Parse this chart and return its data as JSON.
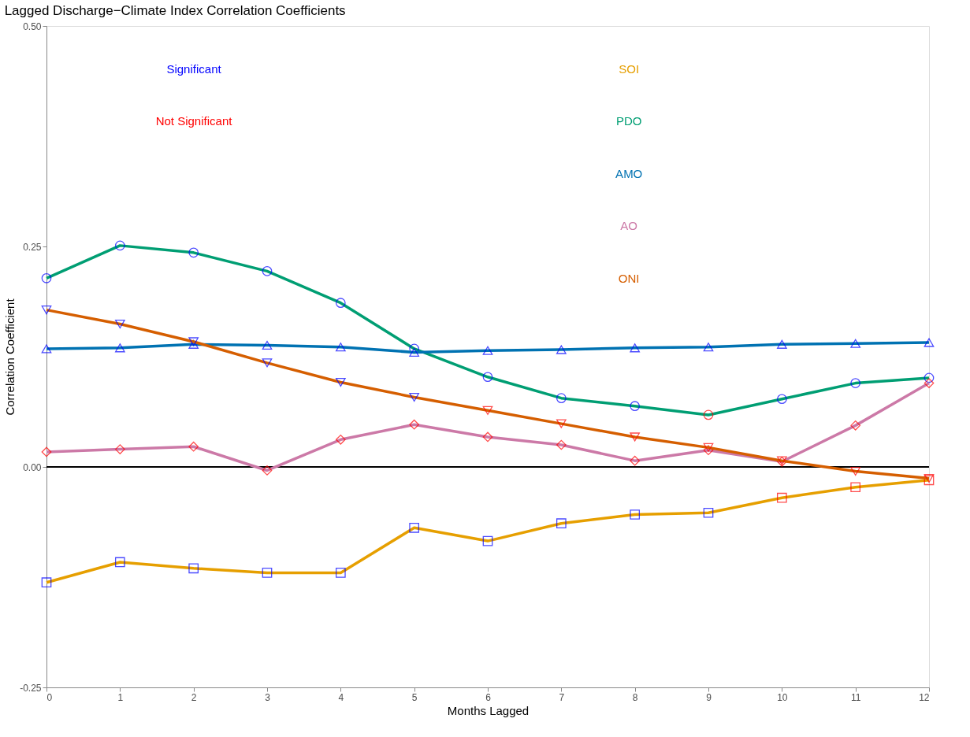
{
  "chart_data": {
    "type": "line",
    "title": "Lagged Discharge−Climate Index Correlation Coefficients",
    "xlabel": "Months Lagged",
    "ylabel": "Correlation Coefficient",
    "x": [
      0,
      1,
      2,
      3,
      4,
      5,
      6,
      7,
      8,
      9,
      10,
      11,
      12
    ],
    "xlim": [
      0,
      12
    ],
    "xticks": [
      0,
      1,
      2,
      3,
      4,
      5,
      6,
      7,
      8,
      9,
      10,
      11,
      12
    ],
    "ylim": [
      -0.25,
      0.5
    ],
    "yticks": [
      {
        "value": -0.25,
        "label": "-0.25"
      },
      {
        "value": 0,
        "label": "0.00"
      },
      {
        "value": 0.25,
        "label": "0.25"
      },
      {
        "value": 0.5,
        "label": "0.50"
      }
    ],
    "grid": false,
    "legend": "top right",
    "ref_lines": [
      {
        "axis": "y",
        "value": 0,
        "color": "#000000"
      }
    ],
    "annotations": [
      "Significant",
      "Not Significant"
    ],
    "series": [
      {
        "name": "SOI",
        "color": "#e69f00",
        "marker": "square",
        "values": [
          -0.131,
          -0.108,
          -0.115,
          -0.12,
          -0.12,
          -0.069,
          -0.084,
          -0.064,
          -0.054,
          -0.052,
          -0.035,
          -0.023,
          -0.015
        ],
        "colors": [
          "#0000ff",
          "#0000ff",
          "#0000ff",
          "#0000ff",
          "#0000ff",
          "#0000ff",
          "#0000ff",
          "#0000ff",
          "#0000ff",
          "#0000ff",
          "#ff0000",
          "#ff0000",
          "#ff0000"
        ]
      },
      {
        "name": "PDO",
        "color": "#009e73",
        "marker": "circle",
        "values": [
          0.214,
          0.251,
          0.243,
          0.222,
          0.186,
          0.134,
          0.102,
          0.078,
          0.069,
          0.059,
          0.077,
          0.095,
          0.101
        ],
        "colors": [
          "#0000ff",
          "#0000ff",
          "#0000ff",
          "#0000ff",
          "#0000ff",
          "#0000ff",
          "#0000ff",
          "#0000ff",
          "#0000ff",
          "#ff0000",
          "#0000ff",
          "#0000ff",
          "#0000ff"
        ]
      },
      {
        "name": "AMO",
        "color": "#0072b2",
        "marker": "triangle",
        "values": [
          0.134,
          0.135,
          0.139,
          0.138,
          0.136,
          0.13,
          0.132,
          0.133,
          0.135,
          0.136,
          0.139,
          0.14,
          0.141
        ],
        "colors": [
          "#0000ff",
          "#0000ff",
          "#0000ff",
          "#0000ff",
          "#0000ff",
          "#0000ff",
          "#0000ff",
          "#0000ff",
          "#0000ff",
          "#0000ff",
          "#0000ff",
          "#0000ff",
          "#0000ff"
        ]
      },
      {
        "name": "AO",
        "color": "#cc79a7",
        "marker": "diamond",
        "values": [
          0.017,
          0.02,
          0.023,
          -0.004,
          0.031,
          0.048,
          0.034,
          0.025,
          0.007,
          0.019,
          0.006,
          0.047,
          0.095
        ],
        "colors": [
          "#ff0000",
          "#ff0000",
          "#ff0000",
          "#ff0000",
          "#ff0000",
          "#ff0000",
          "#ff0000",
          "#ff0000",
          "#ff0000",
          "#ff0000",
          "#ff0000",
          "#ff0000",
          "#ff0000"
        ]
      },
      {
        "name": "ONI",
        "color": "#d55e00",
        "marker": "triangle-down",
        "values": [
          0.178,
          0.162,
          0.142,
          0.118,
          0.096,
          0.079,
          0.064,
          0.049,
          0.034,
          0.022,
          0.007,
          -0.005,
          -0.013
        ],
        "colors": [
          "#0000ff",
          "#0000ff",
          "#0000ff",
          "#0000ff",
          "#0000ff",
          "#0000ff",
          "#ff0000",
          "#ff0000",
          "#ff0000",
          "#ff0000",
          "#ff0000",
          "#ff0000",
          "#ff0000"
        ]
      }
    ]
  }
}
